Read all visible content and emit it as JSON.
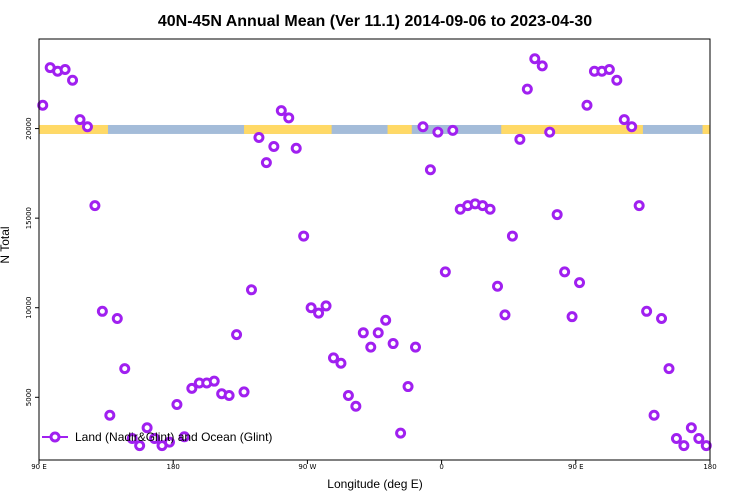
{
  "chart_data": {
    "type": "scatter",
    "title": "40N-45N Annual Mean (Ver 11.1)   2014-09-06 to 2023-04-30",
    "xlabel": "Longitude (deg E)",
    "ylabel": "N Total",
    "xlim": [
      90,
      450
    ],
    "ylim": [
      1500,
      25000
    ],
    "x_ticks": [
      {
        "value": 90,
        "label": "90 E"
      },
      {
        "value": 162,
        "label": "180"
      },
      {
        "value": 234,
        "label": "90 W"
      },
      {
        "value": 306,
        "label": "0"
      },
      {
        "value": 378,
        "label": "90 E"
      },
      {
        "value": 450,
        "label": "180"
      }
    ],
    "y_ticks": [
      {
        "value": 5000,
        "label": "5000"
      },
      {
        "value": 10000,
        "label": "10000"
      },
      {
        "value": 15000,
        "label": "15000"
      },
      {
        "value": 20000,
        "label": "20000"
      }
    ],
    "grid": false,
    "legend_position": "bottom-left",
    "marker_color": "#a020f0",
    "land_color": "#ffd966",
    "ocean_color": "#a4bcd9",
    "land_ocean_strip": {
      "y_range": [
        19700,
        20200
      ],
      "land_segments": [
        [
          90,
          127
        ],
        [
          200,
          247
        ],
        [
          277,
          290
        ],
        [
          338,
          414
        ],
        [
          446,
          450
        ]
      ]
    },
    "series": [
      {
        "name": "Land (Nadir&Glint) and Ocean (Glint)",
        "x": [
          92,
          96,
          100,
          104,
          108,
          112,
          116,
          120,
          124,
          128,
          132,
          136,
          140,
          144,
          148,
          152,
          156,
          160,
          164,
          168,
          172,
          176,
          180,
          184,
          188,
          192,
          196,
          200,
          204,
          208,
          212,
          216,
          220,
          224,
          228,
          232,
          236,
          240,
          244,
          248,
          252,
          256,
          260,
          264,
          268,
          272,
          276,
          280,
          284,
          288,
          292,
          296,
          300,
          304,
          308,
          312,
          316,
          320,
          324,
          328,
          332,
          336,
          340,
          344,
          348,
          352,
          356,
          360,
          364,
          368,
          372,
          376,
          380,
          384,
          388,
          392,
          396,
          400,
          404,
          408,
          412,
          416,
          420,
          424,
          428,
          432,
          436,
          440,
          444,
          448
        ],
        "y": [
          21300,
          23400,
          23200,
          23300,
          22700,
          20500,
          20100,
          15700,
          9800,
          4000,
          9400,
          6600,
          2700,
          2300,
          3300,
          2700,
          2300,
          2500,
          4600,
          2800,
          5500,
          5800,
          5800,
          5900,
          5200,
          5100,
          8500,
          5300,
          11000,
          19500,
          18100,
          19000,
          21000,
          20600,
          18900,
          14000,
          10000,
          9700,
          10100,
          7200,
          6900,
          5100,
          4500,
          8600,
          7800,
          8600,
          9300,
          8000,
          3000,
          5600,
          7800,
          20100,
          17700,
          19800,
          12000,
          19900,
          15500,
          15700,
          15800,
          15700,
          15500,
          11200,
          9600,
          14000,
          19400,
          22200,
          23900,
          23500,
          19800,
          15200,
          12000,
          9500,
          11400,
          21300,
          23200,
          23200,
          23300,
          22700,
          20500,
          20100,
          15700,
          9800,
          4000,
          9400,
          6600,
          2700,
          2300,
          3300,
          2700,
          2300
        ]
      }
    ]
  }
}
